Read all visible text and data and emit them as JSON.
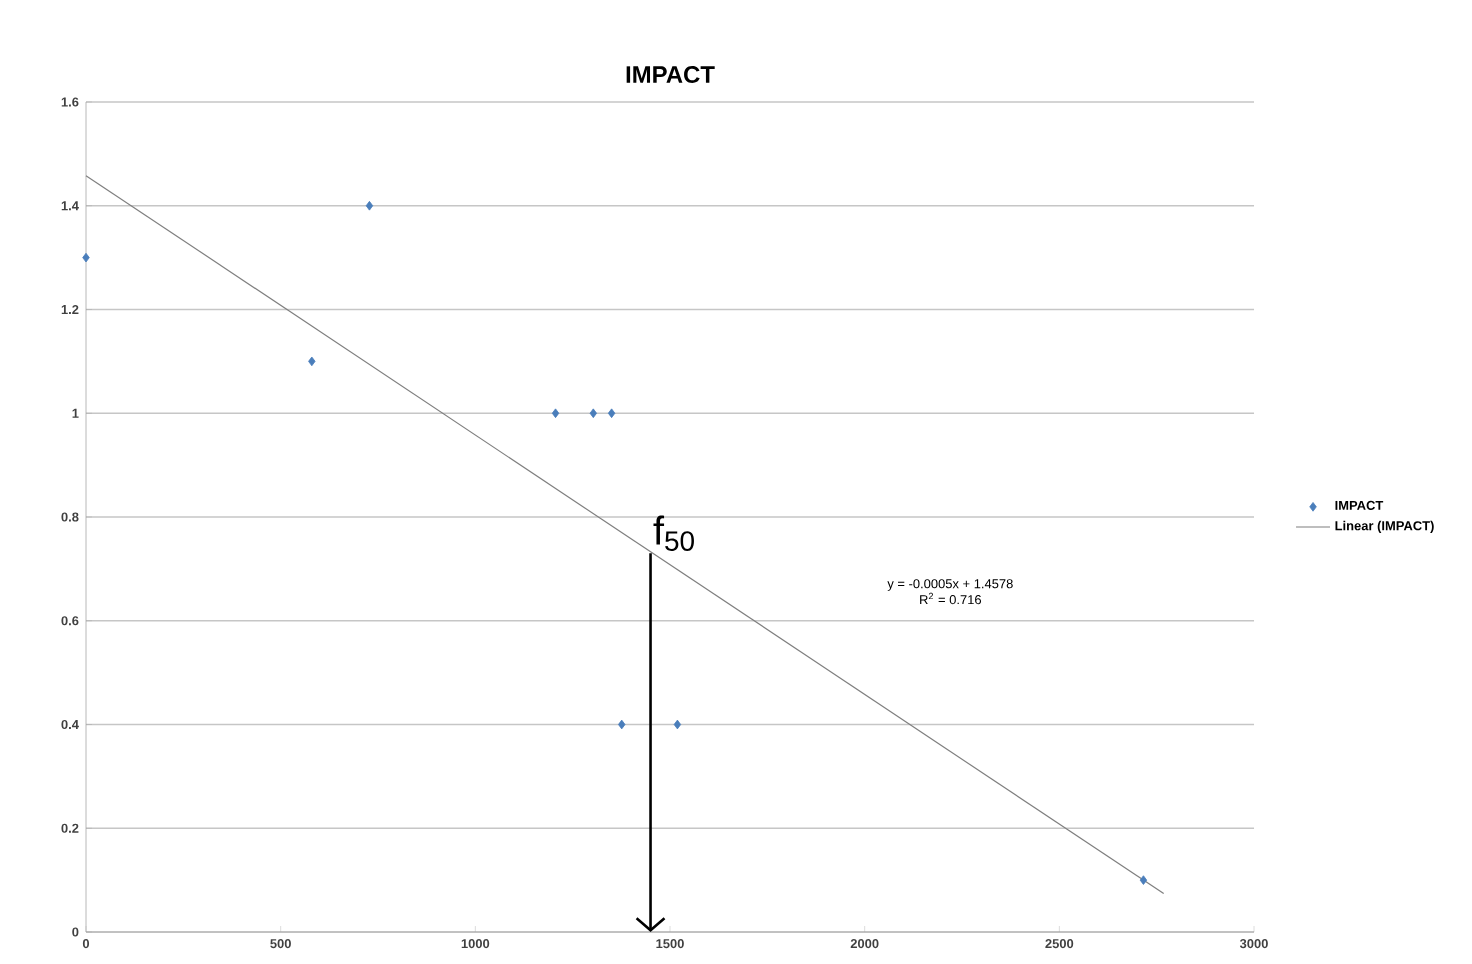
{
  "chart_data": {
    "type": "scatter",
    "title": "IMPACT",
    "xlim": [
      0,
      3000
    ],
    "xticks": [
      0,
      500,
      1000,
      1500,
      2000,
      2500,
      3000
    ],
    "ylim": [
      0,
      1.6
    ],
    "yticks": [
      0,
      0.2,
      0.4,
      0.6,
      0.8,
      1,
      1.2,
      1.4,
      1.6
    ],
    "grid": "y",
    "legend": "right",
    "marker": "diamond",
    "series": [
      {
        "name": "IMPACT",
        "color": "#4a7ebb",
        "x": [
          0,
          580,
          728,
          1206,
          1303,
          1350,
          1376,
          1519,
          2716
        ],
        "values": [
          1.3,
          1.1,
          1.4,
          1.0,
          1.0,
          1.0,
          0.4,
          0.4,
          0.1
        ]
      },
      {
        "name": "Linear (IMPACT)",
        "type": "line",
        "marker": "none",
        "color": "#7f7f7f",
        "x": [
          0,
          2768
        ],
        "values": [
          1.458,
          0.074
        ]
      }
    ],
    "annotations": [
      {
        "text": "f$_{50}$",
        "x": 1450,
        "y": 0.73
      },
      "y = -0.0005x + 1.4578",
      "R$^{2}$ = 0.716"
    ]
  }
}
